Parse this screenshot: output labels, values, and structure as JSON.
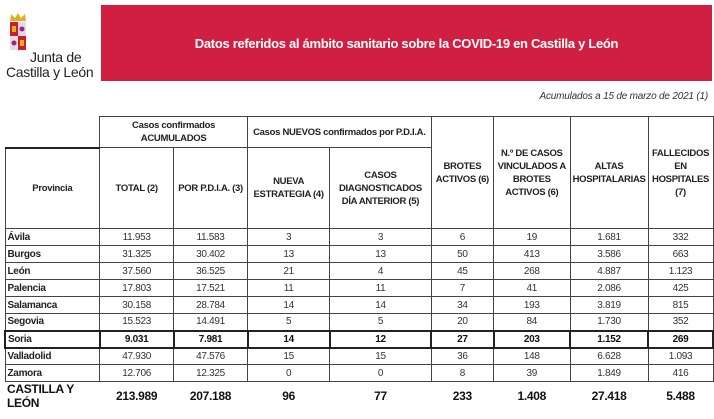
{
  "logo": {
    "line1": "Junta de",
    "line2": "Castilla y León"
  },
  "banner": {
    "title": "Datos referidos al ámbito sanitario sobre la COVID-19 en Castilla y León"
  },
  "date_note": "Acumulados a 15 de marzo de 2021 (1)",
  "colors": {
    "banner": "#d01f41"
  },
  "table": {
    "group_headers": {
      "acumulados": "Casos confirmados ACUMULADOS",
      "nuevos": "Casos NUEVOS confirmados por P.D.I.A."
    },
    "columns": [
      "Provincia",
      "TOTAL (2)",
      "POR P.D.I.A. (3)",
      "NUEVA ESTRATEGIA (4)",
      "CASOS DIAGNOSTICADOS DÍA ANTERIOR (5)",
      "BROTES ACTIVOS (6)",
      "N.º DE CASOS VINCULADOS A BROTES ACTIVOS (6)",
      "ALTAS HOSPITALARIAS",
      "FALLECIDOS EN HOSPITALES (7)"
    ],
    "rows": [
      [
        "Ávila",
        "11.953",
        "11.583",
        "3",
        "3",
        "6",
        "19",
        "1.681",
        "332"
      ],
      [
        "Burgos",
        "31.325",
        "30.402",
        "13",
        "13",
        "50",
        "413",
        "3.586",
        "663"
      ],
      [
        "León",
        "37.560",
        "36.525",
        "21",
        "4",
        "45",
        "268",
        "4.887",
        "1.123"
      ],
      [
        "Palencia",
        "17.803",
        "17.521",
        "11",
        "11",
        "7",
        "41",
        "2.086",
        "425"
      ],
      [
        "Salamanca",
        "30.158",
        "28.784",
        "14",
        "14",
        "34",
        "193",
        "3.819",
        "815"
      ],
      [
        "Segovia",
        "15.523",
        "14.491",
        "5",
        "5",
        "20",
        "84",
        "1.730",
        "352"
      ],
      [
        "Soria",
        "9.031",
        "7.981",
        "14",
        "12",
        "27",
        "203",
        "1.152",
        "269"
      ],
      [
        "Valladolid",
        "47.930",
        "47.576",
        "15",
        "15",
        "36",
        "148",
        "6.628",
        "1.093"
      ],
      [
        "Zamora",
        "12.706",
        "12.325",
        "0",
        "0",
        "8",
        "39",
        "1.849",
        "416"
      ]
    ],
    "highlighted_row": "Soria",
    "total": [
      "CASTILLA Y LEÓN",
      "213.989",
      "207.188",
      "96",
      "77",
      "233",
      "1.408",
      "27.418",
      "5.488"
    ]
  }
}
